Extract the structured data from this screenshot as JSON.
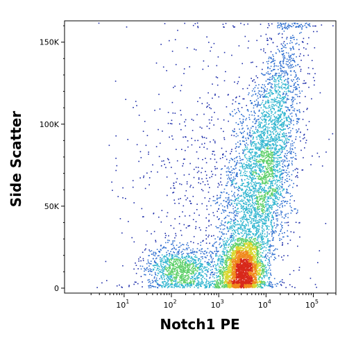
{
  "chart_data": {
    "type": "scatter",
    "style": "flow-cytometry pseudocolor density dot plot",
    "xlabel": "Notch1 PE",
    "ylabel": "Side Scatter",
    "x_scale": "log",
    "x_range": [
      0.55,
      300000
    ],
    "y_range": [
      -3000,
      163000
    ],
    "x_ticks": [
      {
        "value": 10,
        "base": "10",
        "exp": "1"
      },
      {
        "value": 100,
        "base": "10",
        "exp": "2"
      },
      {
        "value": 1000,
        "base": "10",
        "exp": "3"
      },
      {
        "value": 10000,
        "base": "10",
        "exp": "4"
      },
      {
        "value": 100000,
        "base": "10",
        "exp": "5"
      }
    ],
    "y_ticks": [
      {
        "value": 0,
        "label": "0"
      },
      {
        "value": 50000,
        "label": "50K"
      },
      {
        "value": 100000,
        "label": "100K"
      },
      {
        "value": 150000,
        "label": "150K"
      }
    ],
    "grid": false,
    "legend": "none",
    "density_colors": [
      "#1a2aa8",
      "#2f6fd0",
      "#33b6d0",
      "#5fd06a",
      "#d8d62a",
      "#f08a1e",
      "#d8281a"
    ],
    "populations": [
      {
        "name": "main",
        "center_x": 3000,
        "center_y": 12000,
        "spread_log10_x": 0.22,
        "spread_y": 9000,
        "weight": 0.28
      },
      {
        "name": "high-side-scatter",
        "center_x": 6000,
        "center_y": 55000,
        "spread_log10_x": 0.35,
        "spread_y": 35000,
        "weight": 0.34
      },
      {
        "name": "tall-right",
        "center_x": 15000,
        "center_y": 100000,
        "spread_log10_x": 0.25,
        "spread_y": 35000,
        "weight": 0.16
      },
      {
        "name": "low-left",
        "center_x": 150,
        "center_y": 12000,
        "spread_log10_x": 0.35,
        "spread_y": 7000,
        "weight": 0.12
      },
      {
        "name": "scattered-background",
        "center_x": 800,
        "center_y": 50000,
        "spread_log10_x": 0.9,
        "spread_y": 50000,
        "weight": 0.1
      }
    ],
    "dense_peak": {
      "x": 3000,
      "y": 8000
    }
  }
}
